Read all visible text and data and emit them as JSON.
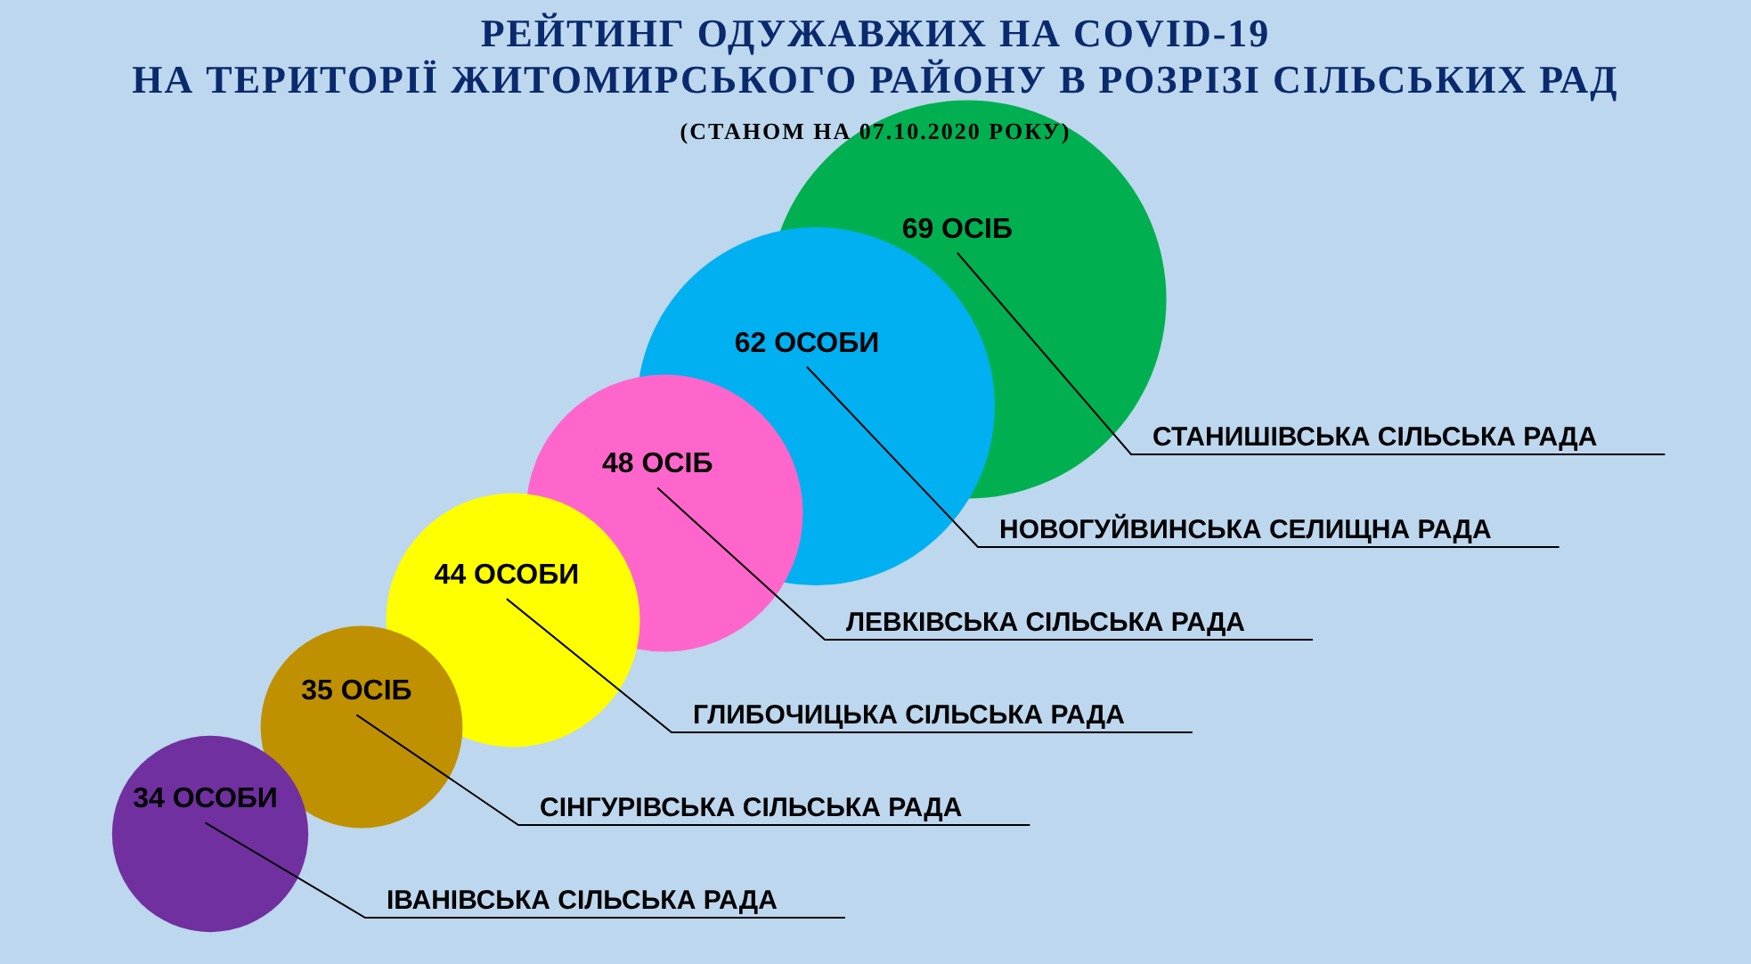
{
  "chart_data": {
    "type": "other",
    "title": "РЕЙТИНГ ОДУЖАВЖИХ НА COVID-19\nНА ТЕРИТОРІЇ ЖИТОМИРСЬКОГО РАЙОНУ В РОЗРІЗІ СІЛЬСЬКИХ РАД",
    "subtitle": "(СТАНОМ НА 07.10.2020 РОКУ)",
    "categories": [
      "ІВАНІВСЬКА СІЛЬСЬКА РАДА",
      "СІНГУРІВСЬКА СІЛЬСЬКА РАДА",
      "ГЛИБОЧИЦЬКА СІЛЬСЬКА РАДА",
      "ЛЕВКІВСЬКА СІЛЬСЬКА РАДА",
      "НОВОГУЙВИНСЬКА СЕЛИЩНА РАДА",
      "СТАНИШІВСЬКА СІЛЬСЬКА РАДА"
    ],
    "values": [
      34,
      35,
      44,
      48,
      62,
      69
    ],
    "value_labels": [
      "34 ОСОБИ",
      "35 ОСІБ",
      "44 ОСОБИ",
      "48 ОСІБ",
      "62 ОСОБИ",
      "69 ОСІБ"
    ],
    "colors": [
      "#7030a0",
      "#bf9000",
      "#ffff00",
      "#ff66cc",
      "#00b0f0",
      "#00b050"
    ]
  }
}
